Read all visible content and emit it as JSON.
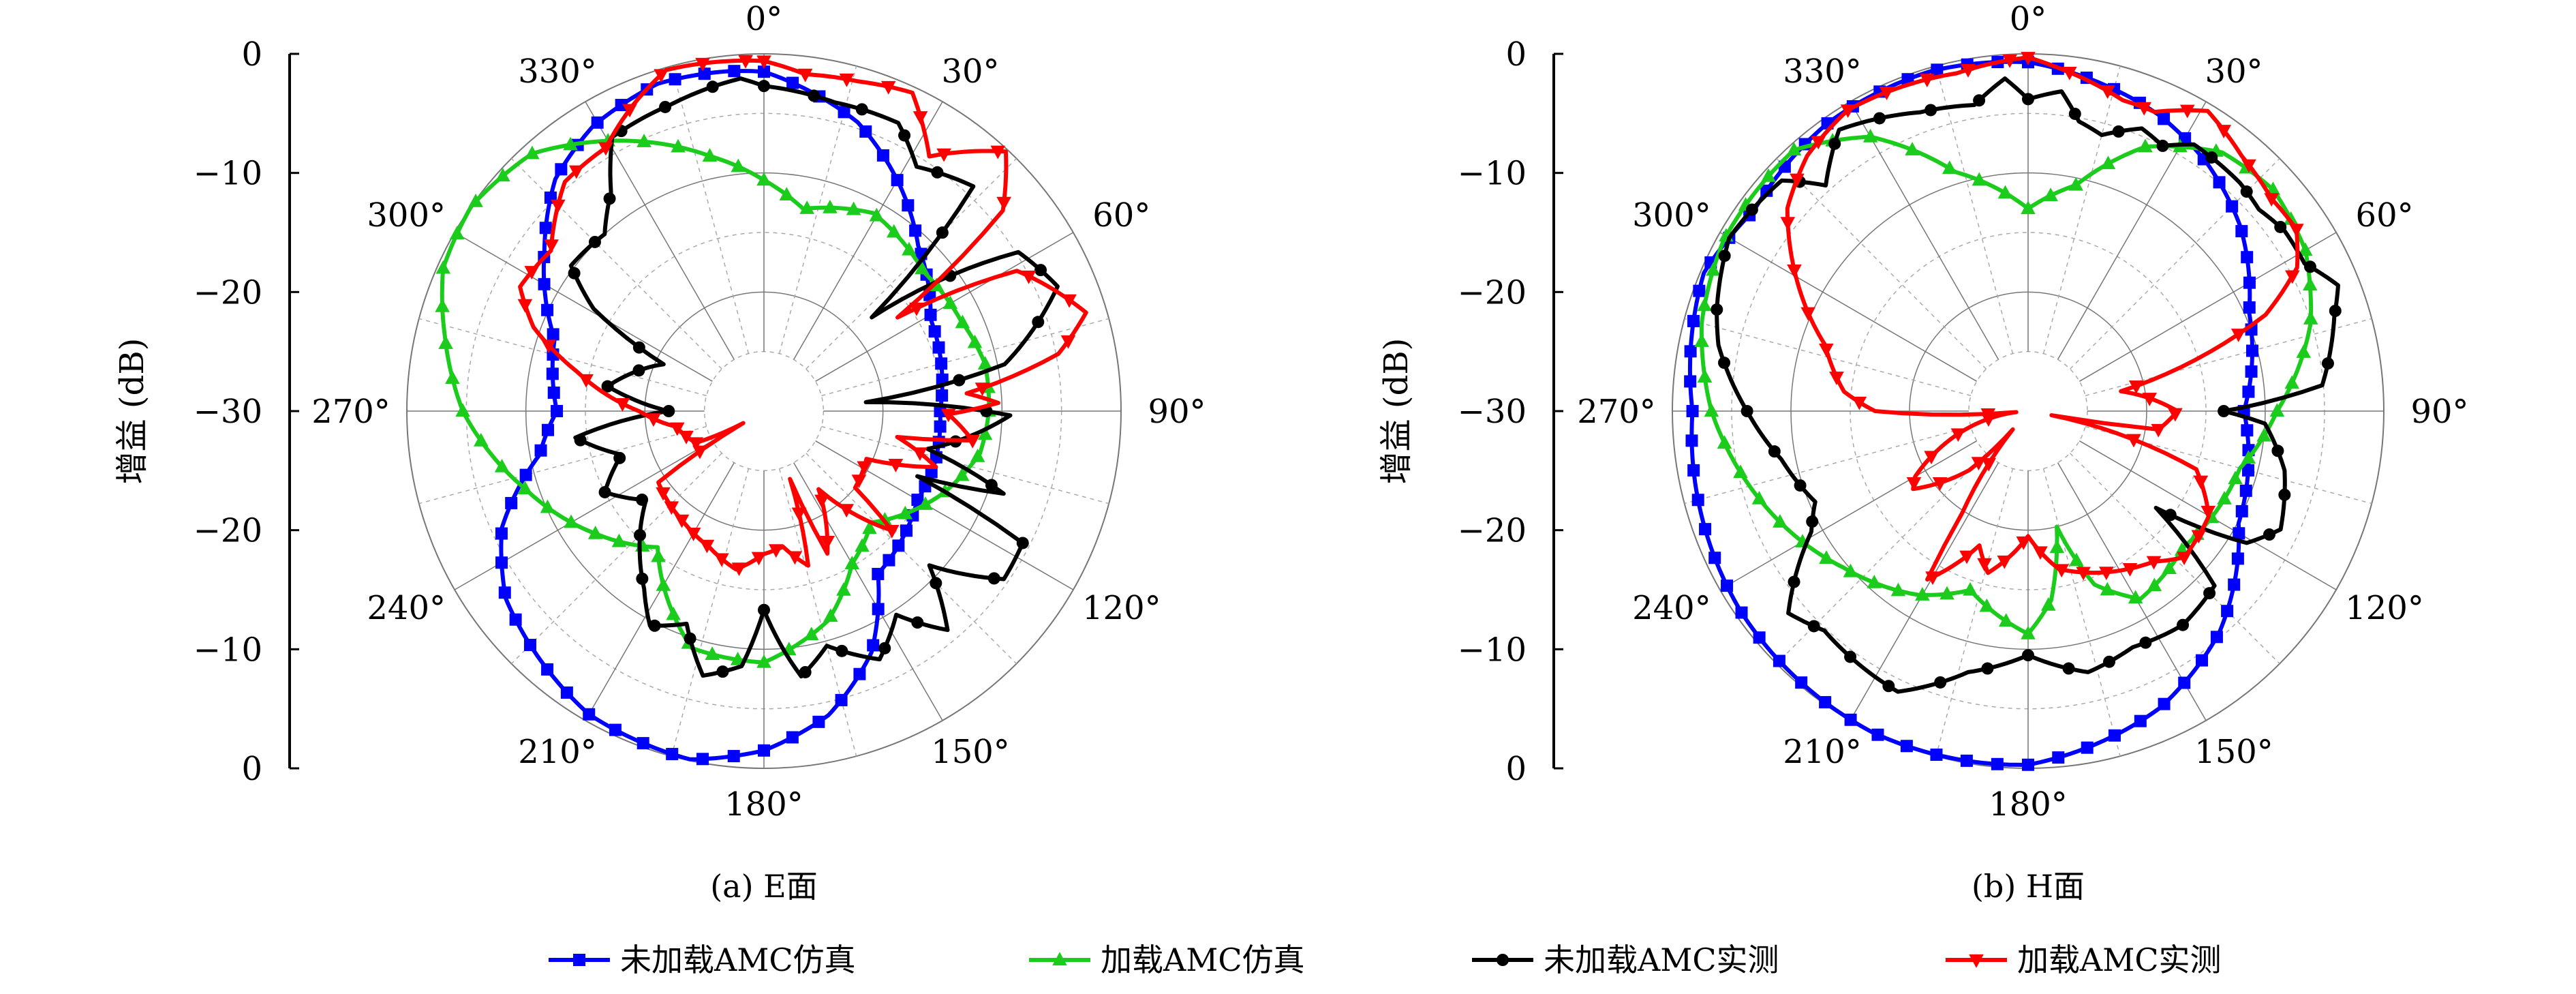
{
  "legend": [
    {
      "name": "未加载AMC仿真",
      "color": "#0000ff",
      "marker": "square"
    },
    {
      "name": "加载AMC仿真",
      "color": "#1ccc1c",
      "marker": "triangle-up"
    },
    {
      "name": "未加载AMC实测",
      "color": "#000000",
      "marker": "circle"
    },
    {
      "name": "加载AMC实测",
      "color": "#ff0000",
      "marker": "triangle-down"
    }
  ],
  "chart_data": [
    {
      "type": "polar-line",
      "caption": "(a) E面",
      "ylabel": "增益 (dB)",
      "rlim": [
        -30,
        0
      ],
      "radial_tick_labels": [
        "0",
        "−10",
        "−20",
        "−30",
        "−20",
        "−10",
        "0"
      ],
      "angle_labels": [
        "0°",
        "30°",
        "60°",
        "90°",
        "120°",
        "150°",
        "180°",
        "210°",
        "240°",
        "270°",
        "300°",
        "330°"
      ],
      "grid": true,
      "series": [
        {
          "name": "未加载AMC仿真",
          "color": "#0000ff",
          "marker": "square",
          "points": [
            [
              0,
              -1.5
            ],
            [
              18,
              -4.5
            ],
            [
              30,
              -7.6
            ],
            [
              43,
              -11
            ],
            [
              61,
              -14
            ],
            [
              90,
              -15.2
            ],
            [
              106,
              -15
            ],
            [
              120,
              -15.1
            ],
            [
              145,
              -13.3
            ],
            [
              156,
              -7.8
            ],
            [
              168,
              -3.9
            ],
            [
              180,
              -1.5
            ],
            [
              192,
              -0.1
            ],
            [
              210,
              -0.6
            ],
            [
              234,
              -3.2
            ],
            [
              246,
              -5.9
            ],
            [
              259,
              -10.8
            ],
            [
              270,
              -12.6
            ],
            [
              289,
              -11.4
            ],
            [
              306,
              -7.2
            ],
            [
              318,
              -3.8
            ],
            [
              329,
              -2.1
            ],
            [
              342,
              -1.1
            ],
            [
              354,
              -1.3
            ]
          ]
        },
        {
          "name": "加载AMC仿真",
          "color": "#1ccc1c",
          "marker": "triangle-up",
          "points": [
            [
              0,
              -10.6
            ],
            [
              11,
              -12.7
            ],
            [
              29,
              -11
            ],
            [
              49,
              -12.2
            ],
            [
              65,
              -11.8
            ],
            [
              78,
              -11
            ],
            [
              90,
              -11.1
            ],
            [
              101,
              -11.5
            ],
            [
              115,
              -13.5
            ],
            [
              136,
              -17
            ],
            [
              150,
              -15.2
            ],
            [
              163,
              -11.6
            ],
            [
              180,
              -8.9
            ],
            [
              197,
              -9.2
            ],
            [
              218,
              -15.5
            ],
            [
              234,
              -12.5
            ],
            [
              252,
              -8.9
            ],
            [
              270,
              -4.7
            ],
            [
              283,
              -2.5
            ],
            [
              294,
              -0.5
            ],
            [
              305,
              0
            ],
            [
              318,
              -0.9
            ],
            [
              330,
              -3.8
            ],
            [
              348,
              -8.1
            ]
          ]
        },
        {
          "name": "未加载AMC实测",
          "color": "#000000",
          "marker": "circle",
          "points": [
            [
              0,
              -2.7
            ],
            [
              13,
              -3.4
            ],
            [
              25,
              -3.3
            ],
            [
              32,
              -5.8
            ],
            [
              43,
              -4.2
            ],
            [
              49,
              -18
            ],
            [
              58,
              -4.8
            ],
            [
              67,
              -3.2
            ],
            [
              79,
              -9.4
            ],
            [
              85,
              -21.4
            ],
            [
              91,
              -9.3
            ],
            [
              103,
              -15.9
            ],
            [
              109,
              -8.7
            ],
            [
              113,
              -16
            ],
            [
              117,
              -5.6
            ],
            [
              125,
              -5.4
            ],
            [
              133,
              -11
            ],
            [
              140,
              -6
            ],
            [
              147,
              -9.6
            ],
            [
              155,
              -7
            ],
            [
              165,
              -9.6
            ],
            [
              172,
              -7.5
            ],
            [
              180,
              -13.3
            ],
            [
              185,
              -8.5
            ],
            [
              193,
              -7.2
            ],
            [
              200,
              -11
            ],
            [
              208,
              -9.6
            ],
            [
              214,
              -12
            ],
            [
              221,
              -14.1
            ],
            [
              233,
              -17.6
            ],
            [
              243,
              -15
            ],
            [
              253,
              -17.5
            ],
            [
              262,
              -14
            ],
            [
              270,
              -22
            ],
            [
              279,
              -16.7
            ],
            [
              295,
              -20.7
            ],
            [
              301,
              -13.3
            ],
            [
              307,
              -9.7
            ],
            [
              318,
              -10
            ],
            [
              325,
              -7.6
            ],
            [
              331,
              -3.7
            ],
            [
              343,
              -3.1
            ],
            [
              356,
              -2
            ]
          ]
        },
        {
          "name": "加载AMC实测",
          "color": "#ff0000",
          "marker": "triangle-down",
          "points": [
            [
              0,
              -0.6
            ],
            [
              7,
              -1.5
            ],
            [
              16,
              -1.2
            ],
            [
              25,
              -0.5
            ],
            [
              33,
              -4.5
            ],
            [
              43,
              -0.2
            ],
            [
              50,
              -3.8
            ],
            [
              55,
              -16.3
            ],
            [
              61,
              -5.7
            ],
            [
              73,
              -1.7
            ],
            [
              79,
              -4.8
            ],
            [
              85,
              -12.9
            ],
            [
              88,
              -10.3
            ],
            [
              91,
              -14.5
            ],
            [
              98,
              -12.3
            ],
            [
              101,
              -18.6
            ],
            [
              108,
              -14.8
            ],
            [
              115,
              -20.5
            ],
            [
              130,
              -20
            ],
            [
              133,
              -15.3
            ],
            [
              145,
              -22
            ],
            [
              156,
              -16.9
            ],
            [
              159,
              -23.9
            ],
            [
              164,
              -16.5
            ],
            [
              172,
              -18.5
            ],
            [
              180,
              -18
            ],
            [
              190,
              -16.5
            ],
            [
              202,
              -17.7
            ],
            [
              216,
              -18.5
            ],
            [
              236,
              -19.3
            ],
            [
              240,
              -28
            ],
            [
              245,
              -23.7
            ],
            [
              260,
              -22.5
            ],
            [
              270,
              -19.5
            ],
            [
              282,
              -13.9
            ],
            [
              290,
              -9.4
            ],
            [
              297,
              -7
            ],
            [
              307,
              -7.6
            ],
            [
              319,
              -4.5
            ],
            [
              329,
              -4.2
            ],
            [
              337,
              -2
            ],
            [
              344,
              -0.2
            ],
            [
              352,
              -0.4
            ]
          ]
        }
      ]
    },
    {
      "type": "polar-line",
      "caption": "(b) H面",
      "ylabel": "增益 (dB)",
      "rlim": [
        -30,
        0
      ],
      "radial_tick_labels": [
        "0",
        "−10",
        "−20",
        "−30",
        "−20",
        "−10",
        "0"
      ],
      "angle_labels": [
        "0°",
        "30°",
        "60°",
        "90°",
        "120°",
        "150°",
        "180°",
        "210°",
        "240°",
        "270°",
        "300°",
        "330°"
      ],
      "grid": true,
      "series": [
        {
          "name": "未加载AMC仿真",
          "color": "#0000ff",
          "marker": "square",
          "points": [
            [
              0,
              -0.7
            ],
            [
              24,
              -2.8
            ],
            [
              36,
              -4.3
            ],
            [
              49,
              -6.3
            ],
            [
              66,
              -9.6
            ],
            [
              90,
              -11.8
            ],
            [
              118,
              -9.9
            ],
            [
              139,
              -5.4
            ],
            [
              156,
              -2.7
            ],
            [
              180,
              -0.3
            ],
            [
              206,
              0
            ],
            [
              235,
              -0.5
            ],
            [
              270,
              -1.7
            ],
            [
              293,
              -0.3
            ],
            [
              306,
              -1.4
            ],
            [
              325,
              -0.5
            ],
            [
              344,
              -0.3
            ]
          ]
        },
        {
          "name": "加载AMC仿真",
          "color": "#1ccc1c",
          "marker": "triangle-up",
          "points": [
            [
              0,
              -13
            ],
            [
              12,
              -10.6
            ],
            [
              24,
              -5.7
            ],
            [
              37,
              -2.8
            ],
            [
              48,
              -2.2
            ],
            [
              60,
              -3
            ],
            [
              73,
              -5.1
            ],
            [
              90,
              -9
            ],
            [
              105,
              -11.5
            ],
            [
              131,
              -12.6
            ],
            [
              149,
              -11.6
            ],
            [
              159,
              -14.4
            ],
            [
              166,
              -20
            ],
            [
              173,
              -14
            ],
            [
              180,
              -11.3
            ],
            [
              198,
              -14.2
            ],
            [
              211,
              -12
            ],
            [
              230,
              -9.6
            ],
            [
              253,
              -6
            ],
            [
              270,
              -3.3
            ],
            [
              285,
              -1.5
            ],
            [
              299,
              -0.6
            ],
            [
              318,
              -0.5
            ],
            [
              330,
              -3.4
            ],
            [
              343,
              -9
            ]
          ]
        },
        {
          "name": "未加载AMC实测",
          "color": "#000000",
          "marker": "circle",
          "points": [
            [
              0,
              -3.8
            ],
            [
              6,
              -3
            ],
            [
              10,
              -5.3
            ],
            [
              15,
              -6
            ],
            [
              22,
              -4.4
            ],
            [
              27,
              -5
            ],
            [
              32,
              -3.6
            ],
            [
              43,
              -3.8
            ],
            [
              49,
              -4.2
            ],
            [
              55,
              -3.6
            ],
            [
              62,
              -3.6
            ],
            [
              68,
              -1.8
            ],
            [
              73,
              -3
            ],
            [
              85,
              -5.1
            ],
            [
              90,
              -13.5
            ],
            [
              93,
              -10
            ],
            [
              103,
              -7.8
            ],
            [
              115,
              -6.5
            ],
            [
              121,
              -8.5
            ],
            [
              127,
              -16.5
            ],
            [
              133,
              -8.5
            ],
            [
              144,
              -7.8
            ],
            [
              156,
              -8.3
            ],
            [
              167,
              -7.5
            ],
            [
              180,
              -9.5
            ],
            [
              193,
              -7.5
            ],
            [
              205,
              -4
            ],
            [
              223,
              -4.8
            ],
            [
              230,
              -3.6
            ],
            [
              241,
              -9.1
            ],
            [
              247,
              -10.5
            ],
            [
              259,
              -8.8
            ],
            [
              270,
              -6.3
            ],
            [
              282,
              -3.3
            ],
            [
              288,
              -2.4
            ],
            [
              300,
              -0.9
            ],
            [
              313,
              -1.6
            ],
            [
              318,
              -4.5
            ],
            [
              326,
              -1.5
            ],
            [
              340,
              -3.3
            ],
            [
              350,
              -3.9
            ],
            [
              356,
              -2
            ]
          ]
        },
        {
          "name": "加载AMC实测",
          "color": "#ff0000",
          "marker": "triangle-down",
          "points": [
            [
              0,
              -0.3
            ],
            [
              6,
              -1.2
            ],
            [
              17,
              -2.7
            ],
            [
              23,
              -2.7
            ],
            [
              31,
              -0.6
            ],
            [
              40,
              -2
            ],
            [
              49,
              -2.8
            ],
            [
              56,
              -2.7
            ],
            [
              62,
              -4.3
            ],
            [
              68,
              -8.4
            ],
            [
              73,
              -15.2
            ],
            [
              78,
              -22
            ],
            [
              90,
              -17.4
            ],
            [
              98,
              -18.9
            ],
            [
              100,
              -28
            ],
            [
              109,
              -15
            ],
            [
              120,
              -12.4
            ],
            [
              133,
              -12
            ],
            [
              140,
              -13.5
            ],
            [
              169,
              -16.5
            ],
            [
              180,
              -19.5
            ],
            [
              194,
              -16
            ],
            [
              200,
              -18
            ],
            [
              211,
              -13.5
            ],
            [
              213,
              -19.8
            ],
            [
              220,
              -28
            ],
            [
              225,
              -23
            ],
            [
              236,
              -18.3
            ],
            [
              240,
              -19
            ],
            [
              265,
              -29
            ],
            [
              270,
              -17.1
            ],
            [
              276,
              -14.4
            ],
            [
              288,
              -12
            ],
            [
              301,
              -7
            ],
            [
              310,
              -3.5
            ],
            [
              319,
              -1.6
            ],
            [
              329,
              -0.5
            ],
            [
              348,
              -1
            ]
          ]
        }
      ]
    }
  ]
}
